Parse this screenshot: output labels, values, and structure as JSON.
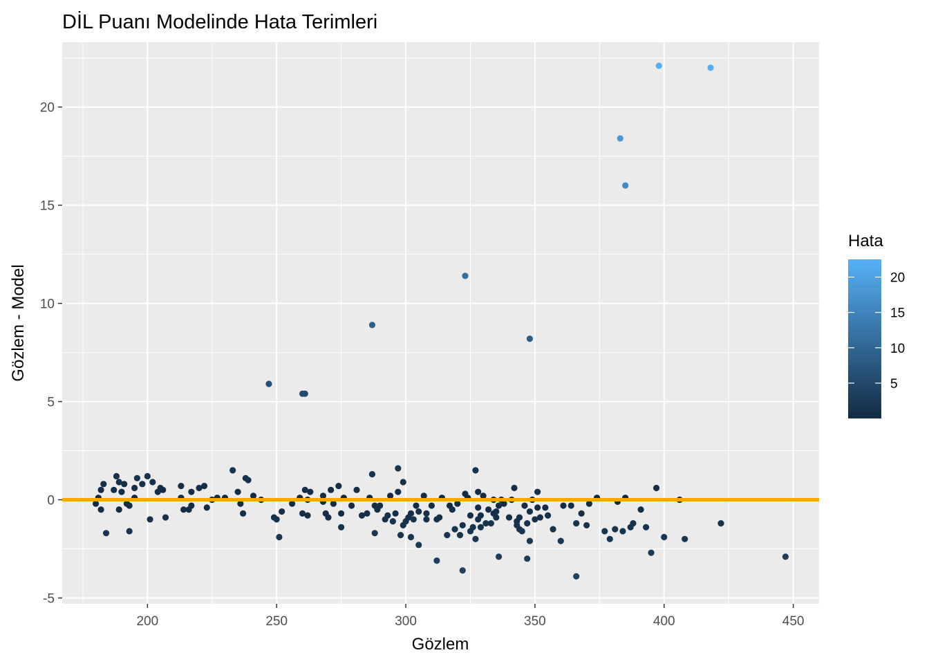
{
  "chart_data": {
    "type": "scatter",
    "title": "DİL Puanı Modelinde Hata Terimleri",
    "xlabel": "Gözlem",
    "ylabel": "Gözlem - Model",
    "xlim": [
      167,
      460
    ],
    "ylim": [
      -5.3,
      23.3
    ],
    "x_ticks": [
      200,
      250,
      300,
      350,
      400,
      450
    ],
    "y_ticks": [
      -5,
      0,
      5,
      10,
      15,
      20
    ],
    "x_tick_labels": [
      "200",
      "250",
      "300",
      "350",
      "400",
      "450"
    ],
    "y_tick_labels": [
      "-5",
      "0",
      "5",
      "10",
      "15",
      "20"
    ],
    "grid": true,
    "reference_line": {
      "y": 0,
      "color": "#FFA500"
    },
    "legend": {
      "title": "Hata",
      "position": "right",
      "type": "colorbar",
      "range": [
        0,
        22.5
      ],
      "ticks": [
        5,
        10,
        15,
        20
      ],
      "tick_labels": [
        "5",
        "10",
        "15",
        "20"
      ],
      "low_color": "#132B43",
      "high_color": "#56B1F7"
    },
    "colors": {
      "panel": "#EBEBEB",
      "grid": "#FFFFFF",
      "low": "#132B43",
      "high": "#56B1F7",
      "reference": "#FFA500"
    },
    "points": [
      [
        180,
        -0.2
      ],
      [
        181,
        0.1
      ],
      [
        182,
        0.5
      ],
      [
        182,
        -0.5
      ],
      [
        183,
        0.8
      ],
      [
        184,
        -1.7
      ],
      [
        187,
        0.5
      ],
      [
        188,
        1.2
      ],
      [
        189,
        0.9
      ],
      [
        189,
        -0.5
      ],
      [
        190,
        0.4
      ],
      [
        191,
        0.8
      ],
      [
        192,
        -0.2
      ],
      [
        193,
        -1.6
      ],
      [
        193,
        -0.3
      ],
      [
        195,
        0.6
      ],
      [
        195,
        0.1
      ],
      [
        196,
        1.1
      ],
      [
        198,
        0.8
      ],
      [
        200,
        1.2
      ],
      [
        201,
        -1.0
      ],
      [
        202,
        0.9
      ],
      [
        204,
        0.4
      ],
      [
        205,
        0.6
      ],
      [
        206,
        0.5
      ],
      [
        207,
        -0.9
      ],
      [
        213,
        0.7
      ],
      [
        213,
        0.1
      ],
      [
        214,
        -0.5
      ],
      [
        216,
        -0.5
      ],
      [
        217,
        0.4
      ],
      [
        217,
        -0.3
      ],
      [
        220,
        0.6
      ],
      [
        222,
        0.7
      ],
      [
        223,
        -0.4
      ],
      [
        225,
        0.0
      ],
      [
        227,
        0.1
      ],
      [
        230,
        0.1
      ],
      [
        233,
        1.5
      ],
      [
        235,
        0.4
      ],
      [
        236,
        -0.2
      ],
      [
        237,
        -0.7
      ],
      [
        238,
        1.1
      ],
      [
        239,
        1.0
      ],
      [
        241,
        0.2
      ],
      [
        244,
        0.0
      ],
      [
        247,
        5.9
      ],
      [
        249,
        -0.9
      ],
      [
        250,
        -1.0
      ],
      [
        251,
        -1.9
      ],
      [
        252,
        -0.6
      ],
      [
        256,
        -0.2
      ],
      [
        259,
        0.1
      ],
      [
        260,
        5.4
      ],
      [
        260,
        -0.7
      ],
      [
        261,
        5.4
      ],
      [
        261,
        0.5
      ],
      [
        262,
        -0.8
      ],
      [
        262,
        0.0
      ],
      [
        263,
        0.4
      ],
      [
        268,
        -0.1
      ],
      [
        268,
        0.2
      ],
      [
        269,
        -0.7
      ],
      [
        270,
        -0.9
      ],
      [
        271,
        0.5
      ],
      [
        272,
        -0.2
      ],
      [
        274,
        0.7
      ],
      [
        275,
        -1.4
      ],
      [
        275,
        -0.7
      ],
      [
        276,
        0.1
      ],
      [
        279,
        -0.3
      ],
      [
        281,
        0.5
      ],
      [
        283,
        -0.8
      ],
      [
        285,
        -0.7
      ],
      [
        286,
        0.1
      ],
      [
        287,
        8.9
      ],
      [
        287,
        1.3
      ],
      [
        288,
        -0.3
      ],
      [
        288,
        -1.7
      ],
      [
        289,
        -0.5
      ],
      [
        290,
        -0.3
      ],
      [
        292,
        -1.0
      ],
      [
        293,
        -0.8
      ],
      [
        294,
        0.2
      ],
      [
        295,
        -1.1
      ],
      [
        296,
        -0.7
      ],
      [
        297,
        1.6
      ],
      [
        297,
        0.4
      ],
      [
        298,
        -1.8
      ],
      [
        299,
        -1.3
      ],
      [
        299,
        0.9
      ],
      [
        300,
        -1.1
      ],
      [
        301,
        -0.9
      ],
      [
        302,
        -1.9
      ],
      [
        302,
        -0.7
      ],
      [
        303,
        -1.0
      ],
      [
        304,
        -0.3
      ],
      [
        305,
        -2.3
      ],
      [
        305,
        -0.6
      ],
      [
        307,
        0.2
      ],
      [
        308,
        -0.7
      ],
      [
        308,
        -1.0
      ],
      [
        310,
        -0.3
      ],
      [
        312,
        -3.1
      ],
      [
        312,
        -1.0
      ],
      [
        313,
        -0.9
      ],
      [
        314,
        0.1
      ],
      [
        316,
        -1.8
      ],
      [
        317,
        -0.3
      ],
      [
        318,
        -0.5
      ],
      [
        319,
        -1.5
      ],
      [
        320,
        -0.2
      ],
      [
        321,
        -1.8
      ],
      [
        322,
        -3.6
      ],
      [
        322,
        -1.3
      ],
      [
        323,
        11.4
      ],
      [
        323,
        0.3
      ],
      [
        324,
        0.1
      ],
      [
        325,
        -1.6
      ],
      [
        325,
        -0.8
      ],
      [
        326,
        -1.4
      ],
      [
        327,
        -2.0
      ],
      [
        327,
        1.5
      ],
      [
        328,
        0.4
      ],
      [
        328,
        -0.4
      ],
      [
        328,
        -1.0
      ],
      [
        329,
        -0.8
      ],
      [
        329,
        -1.4
      ],
      [
        330,
        0.2
      ],
      [
        331,
        -1.2
      ],
      [
        332,
        -0.5
      ],
      [
        333,
        -1.2
      ],
      [
        334,
        -0.7
      ],
      [
        334,
        0.0
      ],
      [
        335,
        -0.9
      ],
      [
        335,
        -0.6
      ],
      [
        336,
        -2.9
      ],
      [
        336,
        -0.3
      ],
      [
        337,
        0.0
      ],
      [
        338,
        -0.2
      ],
      [
        340,
        -0.9
      ],
      [
        341,
        0.0
      ],
      [
        342,
        0.6
      ],
      [
        343,
        -1.1
      ],
      [
        343,
        -1.3
      ],
      [
        344,
        -1.5
      ],
      [
        344,
        -0.9
      ],
      [
        345,
        -1.6
      ],
      [
        346,
        -0.3
      ],
      [
        347,
        -3.0
      ],
      [
        347,
        -1.2
      ],
      [
        348,
        8.2
      ],
      [
        348,
        -2.1
      ],
      [
        348,
        -0.6
      ],
      [
        349,
        0.0
      ],
      [
        350,
        -1.0
      ],
      [
        351,
        0.4
      ],
      [
        351,
        -0.4
      ],
      [
        352,
        -0.9
      ],
      [
        354,
        -0.4
      ],
      [
        355,
        -0.8
      ],
      [
        357,
        -1.5
      ],
      [
        360,
        -2.1
      ],
      [
        361,
        -0.3
      ],
      [
        364,
        -0.3
      ],
      [
        366,
        -1.2
      ],
      [
        366,
        -3.9
      ],
      [
        368,
        -0.7
      ],
      [
        370,
        -1.3
      ],
      [
        371,
        -0.2
      ],
      [
        374,
        0.1
      ],
      [
        377,
        -1.6
      ],
      [
        379,
        -2.0
      ],
      [
        381,
        -1.5
      ],
      [
        382,
        -0.1
      ],
      [
        383,
        18.4
      ],
      [
        384,
        -1.6
      ],
      [
        385,
        16.0
      ],
      [
        385,
        0.1
      ],
      [
        387,
        -1.4
      ],
      [
        388,
        -1.2
      ],
      [
        391,
        -0.5
      ],
      [
        393,
        -1.4
      ],
      [
        395,
        -2.7
      ],
      [
        397,
        0.6
      ],
      [
        398,
        22.1
      ],
      [
        400,
        -1.9
      ],
      [
        406,
        0.0
      ],
      [
        408,
        -2.0
      ],
      [
        418,
        22.0
      ],
      [
        422,
        -1.2
      ],
      [
        447,
        -2.9
      ]
    ]
  }
}
